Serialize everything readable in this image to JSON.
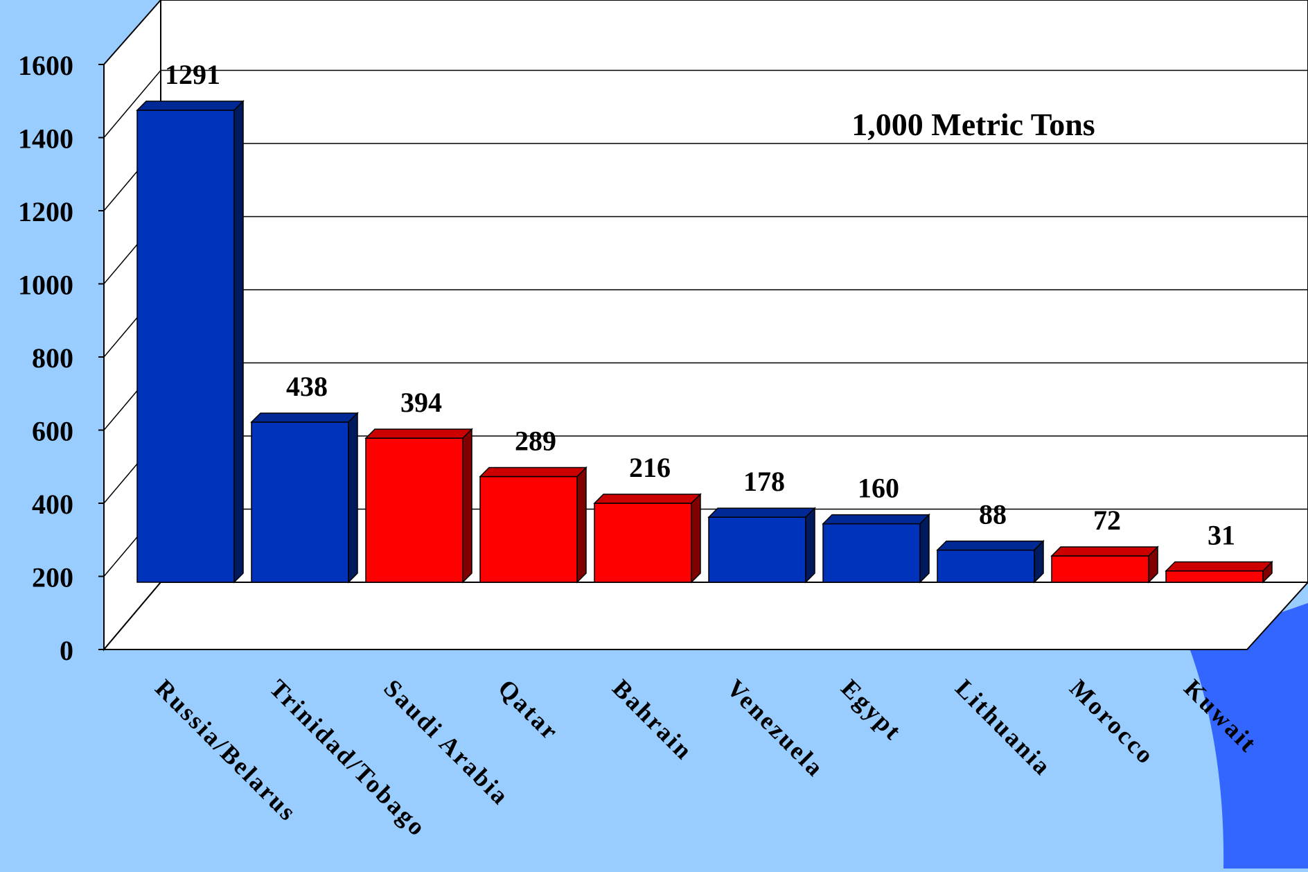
{
  "chart_data": {
    "type": "bar",
    "title": "",
    "annotation": "1,000 Metric Tons",
    "xlabel": "",
    "ylabel": "",
    "categories": [
      "Russia/Belarus",
      "Trinidad/Tobago",
      "Saudi Arabia",
      "Qatar",
      "Bahrain",
      "Venezuela",
      "Egypt",
      "Lithuania",
      "Morocco",
      "Kuwait"
    ],
    "values": [
      1291,
      438,
      394,
      289,
      216,
      178,
      160,
      88,
      72,
      31
    ],
    "value_labels": [
      "1291",
      "438",
      "394",
      "289",
      "216",
      "178",
      "160",
      "88",
      "72",
      "31"
    ],
    "bar_colors": [
      "#0033bb",
      "#0033bb",
      "#ff0000",
      "#ff0000",
      "#ff0000",
      "#0033bb",
      "#0033bb",
      "#0033bb",
      "#ff0000",
      "#ff0000"
    ],
    "ylim": [
      0,
      1600
    ],
    "y_ticks": [
      "0",
      "200",
      "400",
      "600",
      "800",
      "1000",
      "1200",
      "1400",
      "1600"
    ],
    "grid": true,
    "three_d": true
  },
  "colors": {
    "background": "#99ccff",
    "accent_dark_blue": "#3366ff",
    "plot_wall": "#ffffff",
    "blue_bar": "#0033bb",
    "red_bar": "#ff0000"
  }
}
